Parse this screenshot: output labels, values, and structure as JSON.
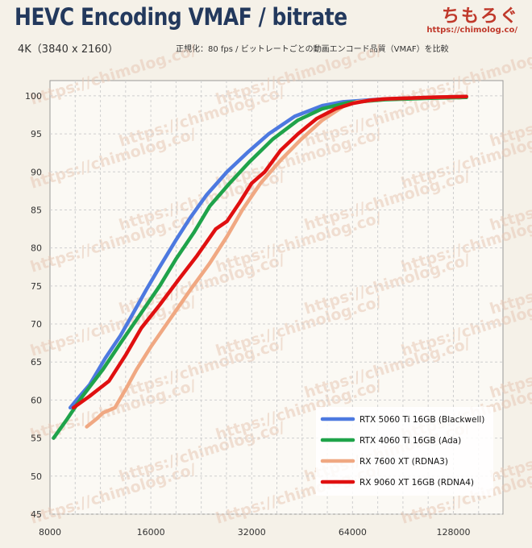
{
  "brand": {
    "logo_text": "ちもろぐ",
    "url": "https://chimolog.co/"
  },
  "watermark": "https://chimolog.co/",
  "chart_data": {
    "type": "line",
    "title": "HEVC Encoding VMAF / bitrate",
    "subtitle": "4K（3840 x 2160）",
    "note": "正規化：80 fps / ビットレートごとの動画エンコード品質（VMAF）を比較",
    "xscale": "log2",
    "xlim": [
      8000,
      180000
    ],
    "ylim": [
      45,
      102
    ],
    "xticks": [
      8000,
      16000,
      32000,
      64000,
      128000
    ],
    "xtick_labels": [
      "8000",
      "16000",
      "32000",
      "64000",
      "128000"
    ],
    "yticks": [
      45,
      50,
      55,
      60,
      65,
      70,
      75,
      80,
      85,
      90,
      95,
      100
    ],
    "grid": true,
    "legend_position": "bottom-right",
    "series": [
      {
        "name": "RTX 5060 Ti 16GB (Blackwell)",
        "color": "#4d79e0",
        "points": [
          [
            9200,
            59
          ],
          [
            9600,
            60
          ],
          [
            10500,
            62
          ],
          [
            11700,
            65.5
          ],
          [
            13000,
            68.5
          ],
          [
            14000,
            71
          ],
          [
            15500,
            74.5
          ],
          [
            17000,
            77.5
          ],
          [
            19000,
            81
          ],
          [
            21000,
            84
          ],
          [
            23500,
            87
          ],
          [
            27000,
            90
          ],
          [
            31000,
            92.5
          ],
          [
            36000,
            95
          ],
          [
            43000,
            97.3
          ],
          [
            52000,
            98.7
          ],
          [
            60000,
            99.2
          ],
          [
            80000,
            99.6
          ],
          [
            110000,
            99.8
          ],
          [
            140000,
            99.9
          ]
        ]
      },
      {
        "name": "RTX 4060 Ti 16GB (Ada)",
        "color": "#1fa34a",
        "points": [
          [
            8200,
            55
          ],
          [
            9000,
            57.5
          ],
          [
            10000,
            60.5
          ],
          [
            11500,
            64
          ],
          [
            13000,
            67.5
          ],
          [
            15000,
            71.5
          ],
          [
            17000,
            75
          ],
          [
            19000,
            78.5
          ],
          [
            21500,
            82
          ],
          [
            24000,
            85.5
          ],
          [
            27500,
            88.5
          ],
          [
            31500,
            91.3
          ],
          [
            37000,
            94.3
          ],
          [
            44000,
            96.8
          ],
          [
            52000,
            98.3
          ],
          [
            62000,
            99.1
          ],
          [
            80000,
            99.5
          ],
          [
            110000,
            99.7
          ],
          [
            140000,
            99.8
          ]
        ]
      },
      {
        "name": "RX 7600 XT (RDNA3)",
        "color": "#f0a882",
        "points": [
          [
            10300,
            56.5
          ],
          [
            11000,
            57.5
          ],
          [
            11500,
            58.3
          ],
          [
            12500,
            59
          ],
          [
            13500,
            61.5
          ],
          [
            14500,
            64
          ],
          [
            16000,
            67
          ],
          [
            18500,
            71
          ],
          [
            21000,
            74.5
          ],
          [
            24000,
            78
          ],
          [
            27000,
            81.5
          ],
          [
            30000,
            85
          ],
          [
            34000,
            88.5
          ],
          [
            39000,
            91.5
          ],
          [
            45000,
            94.3
          ],
          [
            52000,
            96.8
          ],
          [
            60000,
            98.6
          ],
          [
            66000,
            99.2
          ],
          [
            80000,
            99.6
          ],
          [
            110000,
            99.8
          ],
          [
            140000,
            99.9
          ]
        ]
      },
      {
        "name": "RX 9060 XT 16GB (RDNA4)",
        "color": "#e01010",
        "points": [
          [
            9400,
            59
          ],
          [
            10500,
            60.5
          ],
          [
            12000,
            62.5
          ],
          [
            13500,
            66
          ],
          [
            15000,
            69.5
          ],
          [
            17000,
            72.5
          ],
          [
            19500,
            76
          ],
          [
            22000,
            79
          ],
          [
            25000,
            82.5
          ],
          [
            27000,
            83.5
          ],
          [
            29500,
            86
          ],
          [
            32000,
            88.5
          ],
          [
            35000,
            90
          ],
          [
            39000,
            92.8
          ],
          [
            44000,
            95
          ],
          [
            50000,
            97
          ],
          [
            57000,
            98.3
          ],
          [
            64000,
            99
          ],
          [
            72000,
            99.4
          ],
          [
            80000,
            99.6
          ],
          [
            110000,
            99.8
          ],
          [
            140000,
            99.9
          ]
        ]
      }
    ]
  }
}
